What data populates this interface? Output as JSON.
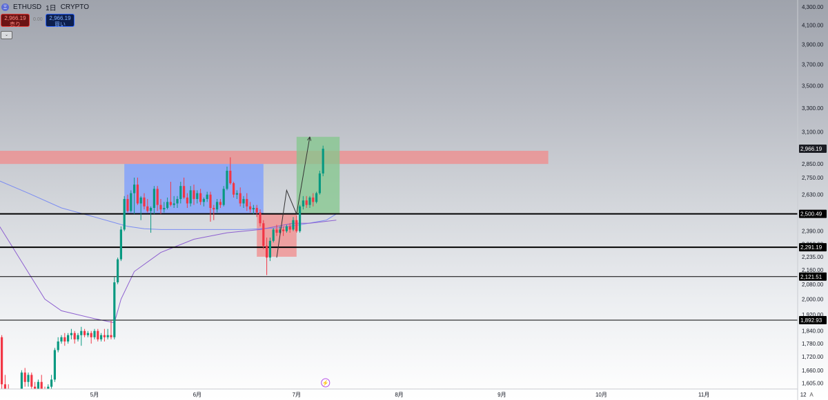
{
  "header": {
    "symbol": "ETHUSD",
    "interval": "1日",
    "exchange": "CRYPTO",
    "sell_price": "2,966.19",
    "sell_label": "売り",
    "spread": "0.00",
    "buy_price": "2,966.19",
    "buy_label": "買い",
    "collapse_label": "⌄"
  },
  "colors": {
    "up": "#089981",
    "down": "#f23645",
    "blue_zone": "#7b9cff",
    "red_zone": "#f28b8b",
    "green_zone": "#83c78c",
    "ma_fast": "#7b8cf2",
    "ma_slow": "#8d5fd0"
  },
  "footer": {
    "corner_icon": "A"
  },
  "chart_data": {
    "type": "candlestick",
    "symbol": "ETHUSD",
    "interval": "1日",
    "y_axis": {
      "scale": "log",
      "range": [
        1600,
        4400
      ],
      "ticks": [
        "4,300.00",
        "4,100.00",
        "3,900.00",
        "3,700.00",
        "3,500.00",
        "3,300.00",
        "3,100.00",
        "2,850.00",
        "2,750.00",
        "2,630.00",
        "2,390.00",
        "2,310.00",
        "2,235.00",
        "2,160.00",
        "2,080.00",
        "2,000.00",
        "1,920.00",
        "1,840.00",
        "1,780.00",
        "1,720.00",
        "1,660.00",
        "1,605.00"
      ],
      "tick_values": [
        4300,
        4100,
        3900,
        3700,
        3500,
        3300,
        3100,
        2850,
        2750,
        2630,
        2390,
        2310,
        2235,
        2160,
        2080,
        2000,
        1920,
        1840,
        1780,
        1720,
        1660,
        1605
      ]
    },
    "x_axis": {
      "labels": [
        "5月",
        "6月",
        "7月",
        "8月",
        "9月",
        "10月",
        "11月",
        "12"
      ],
      "label_days": [
        0,
        31,
        61,
        92,
        123,
        153,
        184,
        214
      ]
    },
    "current_price": {
      "value": 2966.19,
      "label": "2,966.19"
    },
    "horizontal_lines": [
      {
        "value": 2500.49,
        "label": "2,500.49",
        "width": 2
      },
      {
        "value": 2291.19,
        "label": "2,291.19",
        "width": 2
      },
      {
        "value": 2121.51,
        "label": "2,121.51",
        "width": 1
      },
      {
        "value": 1892.93,
        "label": "1,892.93",
        "width": 1
      }
    ],
    "zones": [
      {
        "name": "resistance",
        "color": "red",
        "day_start": -31,
        "day_end": 137,
        "top": 2950,
        "bottom": 2850
      },
      {
        "name": "range",
        "color": "blue",
        "day_start": 9,
        "day_end": 51,
        "top": 2850,
        "bottom": 2500
      },
      {
        "name": "dip",
        "color": "red",
        "day_start": 49,
        "day_end": 61,
        "top": 2500,
        "bottom": 2235
      },
      {
        "name": "breakout",
        "color": "green",
        "day_start": 61,
        "day_end": 74,
        "top": 3060,
        "bottom": 2500
      }
    ],
    "projection": [
      {
        "day": 55,
        "price": 2230
      },
      {
        "day": 58,
        "price": 2660
      },
      {
        "day": 61,
        "price": 2500
      },
      {
        "day": 65,
        "price": 3060
      }
    ],
    "ma_fast": [
      [
        -31,
        2750
      ],
      [
        -20,
        2640
      ],
      [
        -10,
        2540
      ],
      [
        0,
        2480
      ],
      [
        5,
        2450
      ],
      [
        10,
        2420
      ],
      [
        15,
        2405
      ],
      [
        20,
        2400
      ],
      [
        25,
        2400
      ],
      [
        35,
        2400
      ],
      [
        45,
        2400
      ],
      [
        55,
        2410
      ],
      [
        62,
        2430
      ],
      [
        70,
        2460
      ],
      [
        73,
        2500
      ]
    ],
    "ma_slow": [
      [
        -31,
        2500
      ],
      [
        -25,
        2300
      ],
      [
        -15,
        2000
      ],
      [
        -10,
        1940
      ],
      [
        0,
        1900
      ],
      [
        6,
        1880
      ],
      [
        8,
        2000
      ],
      [
        12,
        2150
      ],
      [
        20,
        2260
      ],
      [
        30,
        2340
      ],
      [
        40,
        2380
      ],
      [
        50,
        2400
      ],
      [
        55,
        2420
      ],
      [
        60,
        2440
      ],
      [
        65,
        2440
      ],
      [
        73,
        2460
      ]
    ],
    "candles": [
      {
        "d": -31,
        "o": 1850,
        "h": 1900,
        "c": 1830,
        "l": 1800
      },
      {
        "d": -30,
        "o": 1830,
        "h": 1860,
        "c": 1820,
        "l": 1780
      },
      {
        "d": -29,
        "o": 1820,
        "h": 1840,
        "c": 1810,
        "l": 1760
      },
      {
        "d": -28,
        "o": 1810,
        "h": 1820,
        "c": 1600,
        "l": 1580
      },
      {
        "d": -27,
        "o": 1600,
        "h": 1640,
        "c": 1580,
        "l": 1540
      },
      {
        "d": -26,
        "o": 1580,
        "h": 1600,
        "c": 1540,
        "l": 1500
      },
      {
        "d": -25,
        "o": 1540,
        "h": 1570,
        "c": 1500,
        "l": 1470
      },
      {
        "d": -24,
        "o": 1500,
        "h": 1560,
        "c": 1550,
        "l": 1480
      },
      {
        "d": -23,
        "o": 1550,
        "h": 1560,
        "c": 1490,
        "l": 1460
      },
      {
        "d": -22,
        "o": 1490,
        "h": 1660,
        "c": 1650,
        "l": 1480
      },
      {
        "d": -21,
        "o": 1650,
        "h": 1670,
        "c": 1610,
        "l": 1590
      },
      {
        "d": -20,
        "o": 1610,
        "h": 1650,
        "c": 1640,
        "l": 1590
      },
      {
        "d": -19,
        "o": 1640,
        "h": 1650,
        "c": 1590,
        "l": 1570
      },
      {
        "d": -18,
        "o": 1590,
        "h": 1610,
        "c": 1570,
        "l": 1550
      },
      {
        "d": -17,
        "o": 1570,
        "h": 1620,
        "c": 1610,
        "l": 1560
      },
      {
        "d": -16,
        "o": 1610,
        "h": 1640,
        "c": 1580,
        "l": 1570
      },
      {
        "d": -15,
        "o": 1580,
        "h": 1590,
        "c": 1560,
        "l": 1540
      },
      {
        "d": -14,
        "o": 1560,
        "h": 1600,
        "c": 1590,
        "l": 1550
      },
      {
        "d": -13,
        "o": 1590,
        "h": 1640,
        "c": 1620,
        "l": 1580
      },
      {
        "d": -12,
        "o": 1620,
        "h": 1760,
        "c": 1750,
        "l": 1610
      },
      {
        "d": -11,
        "o": 1750,
        "h": 1810,
        "c": 1790,
        "l": 1740
      },
      {
        "d": -10,
        "o": 1790,
        "h": 1820,
        "c": 1810,
        "l": 1780
      },
      {
        "d": -9,
        "o": 1810,
        "h": 1830,
        "c": 1790,
        "l": 1770
      },
      {
        "d": -8,
        "o": 1790,
        "h": 1830,
        "c": 1820,
        "l": 1780
      },
      {
        "d": -7,
        "o": 1820,
        "h": 1850,
        "c": 1830,
        "l": 1800
      },
      {
        "d": -6,
        "o": 1830,
        "h": 1840,
        "c": 1800,
        "l": 1780
      },
      {
        "d": -5,
        "o": 1800,
        "h": 1830,
        "c": 1820,
        "l": 1790
      },
      {
        "d": -4,
        "o": 1820,
        "h": 1860,
        "c": 1840,
        "l": 1770
      },
      {
        "d": -3,
        "o": 1840,
        "h": 1850,
        "c": 1820,
        "l": 1810
      },
      {
        "d": -2,
        "o": 1820,
        "h": 1840,
        "c": 1830,
        "l": 1810
      },
      {
        "d": -1,
        "o": 1830,
        "h": 1840,
        "c": 1810,
        "l": 1780
      },
      {
        "d": 0,
        "o": 1810,
        "h": 1850,
        "c": 1840,
        "l": 1800
      },
      {
        "d": 1,
        "o": 1840,
        "h": 1850,
        "c": 1800,
        "l": 1790
      },
      {
        "d": 2,
        "o": 1800,
        "h": 1830,
        "c": 1820,
        "l": 1790
      },
      {
        "d": 3,
        "o": 1820,
        "h": 1850,
        "c": 1810,
        "l": 1790
      },
      {
        "d": 4,
        "o": 1810,
        "h": 1850,
        "c": 1820,
        "l": 1800
      },
      {
        "d": 5,
        "o": 1820,
        "h": 1890,
        "c": 1810,
        "l": 1800
      },
      {
        "d": 6,
        "o": 1810,
        "h": 2120,
        "c": 2090,
        "l": 1800
      },
      {
        "d": 7,
        "o": 2090,
        "h": 2230,
        "c": 2220,
        "l": 2080
      },
      {
        "d": 8,
        "o": 2220,
        "h": 2420,
        "c": 2400,
        "l": 2210
      },
      {
        "d": 9,
        "o": 2400,
        "h": 2620,
        "c": 2600,
        "l": 2390
      },
      {
        "d": 10,
        "o": 2600,
        "h": 2630,
        "c": 2520,
        "l": 2510
      },
      {
        "d": 11,
        "o": 2520,
        "h": 2660,
        "c": 2640,
        "l": 2510
      },
      {
        "d": 12,
        "o": 2640,
        "h": 2750,
        "c": 2700,
        "l": 2500
      },
      {
        "d": 13,
        "o": 2700,
        "h": 2750,
        "c": 2570,
        "l": 2560
      },
      {
        "d": 14,
        "o": 2570,
        "h": 2620,
        "c": 2610,
        "l": 2460
      },
      {
        "d": 15,
        "o": 2610,
        "h": 2640,
        "c": 2550,
        "l": 2530
      },
      {
        "d": 16,
        "o": 2550,
        "h": 2600,
        "c": 2520,
        "l": 2510
      },
      {
        "d": 17,
        "o": 2520,
        "h": 2550,
        "c": 2540,
        "l": 2380
      },
      {
        "d": 18,
        "o": 2540,
        "h": 2690,
        "c": 2670,
        "l": 2500
      },
      {
        "d": 19,
        "o": 2670,
        "h": 2690,
        "c": 2560,
        "l": 2520
      },
      {
        "d": 20,
        "o": 2560,
        "h": 2600,
        "c": 2530,
        "l": 2500
      },
      {
        "d": 21,
        "o": 2530,
        "h": 2580,
        "c": 2540,
        "l": 2510
      },
      {
        "d": 22,
        "o": 2540,
        "h": 2610,
        "c": 2580,
        "l": 2530
      },
      {
        "d": 23,
        "o": 2580,
        "h": 2720,
        "c": 2560,
        "l": 2550
      },
      {
        "d": 24,
        "o": 2560,
        "h": 2620,
        "c": 2570,
        "l": 2540
      },
      {
        "d": 25,
        "o": 2570,
        "h": 2620,
        "c": 2600,
        "l": 2540
      },
      {
        "d": 26,
        "o": 2600,
        "h": 2720,
        "c": 2690,
        "l": 2570
      },
      {
        "d": 27,
        "o": 2690,
        "h": 2750,
        "c": 2610,
        "l": 2600
      },
      {
        "d": 28,
        "o": 2610,
        "h": 2640,
        "c": 2570,
        "l": 2540
      },
      {
        "d": 29,
        "o": 2570,
        "h": 2690,
        "c": 2660,
        "l": 2550
      },
      {
        "d": 30,
        "o": 2660,
        "h": 2700,
        "c": 2600,
        "l": 2560
      },
      {
        "d": 31,
        "o": 2600,
        "h": 2660,
        "c": 2640,
        "l": 2570
      },
      {
        "d": 32,
        "o": 2640,
        "h": 2670,
        "c": 2580,
        "l": 2560
      },
      {
        "d": 33,
        "o": 2580,
        "h": 2610,
        "c": 2600,
        "l": 2550
      },
      {
        "d": 34,
        "o": 2600,
        "h": 2650,
        "c": 2630,
        "l": 2580
      },
      {
        "d": 35,
        "o": 2630,
        "h": 2650,
        "c": 2540,
        "l": 2450
      },
      {
        "d": 36,
        "o": 2540,
        "h": 2560,
        "c": 2530,
        "l": 2460
      },
      {
        "d": 37,
        "o": 2530,
        "h": 2600,
        "c": 2580,
        "l": 2510
      },
      {
        "d": 38,
        "o": 2580,
        "h": 2600,
        "c": 2560,
        "l": 2540
      },
      {
        "d": 39,
        "o": 2560,
        "h": 2690,
        "c": 2670,
        "l": 2550
      },
      {
        "d": 40,
        "o": 2670,
        "h": 2830,
        "c": 2800,
        "l": 2660
      },
      {
        "d": 41,
        "o": 2800,
        "h": 2900,
        "c": 2710,
        "l": 2700
      },
      {
        "d": 42,
        "o": 2710,
        "h": 2720,
        "c": 2630,
        "l": 2610
      },
      {
        "d": 43,
        "o": 2630,
        "h": 2660,
        "c": 2640,
        "l": 2600
      },
      {
        "d": 44,
        "o": 2640,
        "h": 2680,
        "c": 2570,
        "l": 2550
      },
      {
        "d": 45,
        "o": 2570,
        "h": 2620,
        "c": 2600,
        "l": 2540
      },
      {
        "d": 46,
        "o": 2600,
        "h": 2640,
        "c": 2550,
        "l": 2520
      },
      {
        "d": 47,
        "o": 2550,
        "h": 2580,
        "c": 2530,
        "l": 2510
      },
      {
        "d": 48,
        "o": 2530,
        "h": 2560,
        "c": 2540,
        "l": 2500
      },
      {
        "d": 49,
        "o": 2540,
        "h": 2560,
        "c": 2510,
        "l": 2480
      },
      {
        "d": 50,
        "o": 2510,
        "h": 2530,
        "c": 2440,
        "l": 2420
      },
      {
        "d": 51,
        "o": 2440,
        "h": 2460,
        "c": 2300,
        "l": 2280
      },
      {
        "d": 52,
        "o": 2300,
        "h": 2350,
        "c": 2230,
        "l": 2130
      },
      {
        "d": 53,
        "o": 2230,
        "h": 2350,
        "c": 2330,
        "l": 2210
      },
      {
        "d": 54,
        "o": 2330,
        "h": 2410,
        "c": 2400,
        "l": 2320
      },
      {
        "d": 55,
        "o": 2400,
        "h": 2430,
        "c": 2380,
        "l": 2360
      },
      {
        "d": 56,
        "o": 2380,
        "h": 2420,
        "c": 2400,
        "l": 2370
      },
      {
        "d": 57,
        "o": 2400,
        "h": 2420,
        "c": 2390,
        "l": 2360
      },
      {
        "d": 58,
        "o": 2390,
        "h": 2430,
        "c": 2420,
        "l": 2380
      },
      {
        "d": 59,
        "o": 2420,
        "h": 2440,
        "c": 2400,
        "l": 2380
      },
      {
        "d": 60,
        "o": 2400,
        "h": 2480,
        "c": 2460,
        "l": 2390
      },
      {
        "d": 61,
        "o": 2460,
        "h": 2490,
        "c": 2390,
        "l": 2380
      },
      {
        "d": 62,
        "o": 2390,
        "h": 2560,
        "c": 2550,
        "l": 2380
      },
      {
        "d": 63,
        "o": 2550,
        "h": 2620,
        "c": 2590,
        "l": 2530
      },
      {
        "d": 64,
        "o": 2590,
        "h": 2620,
        "c": 2560,
        "l": 2540
      },
      {
        "d": 65,
        "o": 2560,
        "h": 2620,
        "c": 2610,
        "l": 2540
      },
      {
        "d": 66,
        "o": 2610,
        "h": 2640,
        "c": 2580,
        "l": 2550
      },
      {
        "d": 67,
        "o": 2580,
        "h": 2650,
        "c": 2640,
        "l": 2570
      },
      {
        "d": 68,
        "o": 2640,
        "h": 2800,
        "c": 2780,
        "l": 2630
      },
      {
        "d": 69,
        "o": 2780,
        "h": 2990,
        "c": 2966.19,
        "l": 2760
      }
    ]
  }
}
